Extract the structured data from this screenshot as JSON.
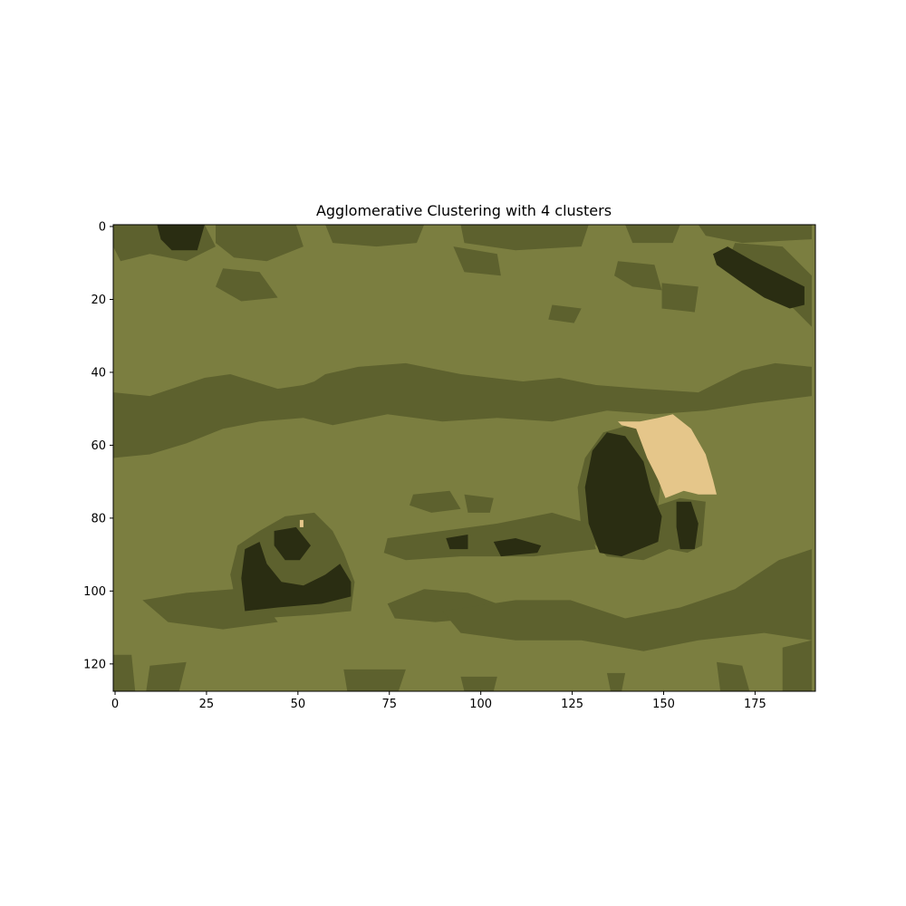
{
  "chart_data": {
    "type": "heatmap",
    "title": "Agglomerative Clustering with 4 clusters",
    "xlabel": "",
    "ylabel": "",
    "xlim": [
      -0.5,
      191.5
    ],
    "ylim": [
      127.5,
      -0.5
    ],
    "grid": false,
    "x_ticks": [
      "0",
      "25",
      "50",
      "75",
      "100",
      "125",
      "150",
      "175"
    ],
    "y_ticks": [
      "0",
      "20",
      "40",
      "60",
      "80",
      "100",
      "120"
    ],
    "image_width": 192,
    "image_height": 128,
    "cluster_colors": [
      "#7b7e40",
      "#5d612e",
      "#2a2d12",
      "#e5c68a"
    ],
    "base_cluster": 0,
    "regions": [
      {
        "cluster": 1,
        "points": [
          [
            0,
            0
          ],
          [
            25,
            0
          ],
          [
            28,
            6
          ],
          [
            20,
            10
          ],
          [
            10,
            8
          ],
          [
            2,
            10
          ],
          [
            0,
            6
          ]
        ]
      },
      {
        "cluster": 1,
        "points": [
          [
            28,
            0
          ],
          [
            50,
            0
          ],
          [
            52,
            6
          ],
          [
            42,
            10
          ],
          [
            33,
            9
          ],
          [
            28,
            5
          ]
        ]
      },
      {
        "cluster": 1,
        "points": [
          [
            58,
            0
          ],
          [
            85,
            0
          ],
          [
            83,
            5
          ],
          [
            72,
            6
          ],
          [
            60,
            5
          ]
        ]
      },
      {
        "cluster": 1,
        "points": [
          [
            95,
            0
          ],
          [
            130,
            0
          ],
          [
            128,
            6
          ],
          [
            110,
            7
          ],
          [
            96,
            5
          ]
        ]
      },
      {
        "cluster": 1,
        "points": [
          [
            140,
            0
          ],
          [
            155,
            0
          ],
          [
            153,
            5
          ],
          [
            142,
            5
          ]
        ]
      },
      {
        "cluster": 1,
        "points": [
          [
            160,
            0
          ],
          [
            191,
            0
          ],
          [
            191,
            4
          ],
          [
            172,
            5
          ],
          [
            162,
            3
          ]
        ]
      },
      {
        "cluster": 1,
        "points": [
          [
            170,
            5
          ],
          [
            183,
            6
          ],
          [
            191,
            14
          ],
          [
            191,
            28
          ],
          [
            186,
            23
          ],
          [
            175,
            16
          ],
          [
            168,
            10
          ]
        ]
      },
      {
        "cluster": 1,
        "points": [
          [
            138,
            10
          ],
          [
            148,
            11
          ],
          [
            150,
            18
          ],
          [
            142,
            17
          ],
          [
            137,
            14
          ]
        ]
      },
      {
        "cluster": 1,
        "points": [
          [
            150,
            16
          ],
          [
            160,
            17
          ],
          [
            159,
            24
          ],
          [
            150,
            23
          ]
        ]
      },
      {
        "cluster": 1,
        "points": [
          [
            93,
            6
          ],
          [
            105,
            8
          ],
          [
            106,
            14
          ],
          [
            96,
            13
          ]
        ]
      },
      {
        "cluster": 1,
        "points": [
          [
            30,
            12
          ],
          [
            40,
            13
          ],
          [
            45,
            20
          ],
          [
            35,
            21
          ],
          [
            28,
            17
          ]
        ]
      },
      {
        "cluster": 1,
        "points": [
          [
            120,
            22
          ],
          [
            128,
            23
          ],
          [
            126,
            27
          ],
          [
            119,
            26
          ]
        ]
      },
      {
        "cluster": 1,
        "points": [
          [
            0,
            46
          ],
          [
            10,
            47
          ],
          [
            25,
            42
          ],
          [
            32,
            41
          ],
          [
            45,
            45
          ],
          [
            52,
            44
          ],
          [
            55,
            43
          ],
          [
            58,
            41
          ],
          [
            67,
            39
          ],
          [
            80,
            38
          ],
          [
            95,
            41
          ],
          [
            112,
            43
          ],
          [
            122,
            42
          ],
          [
            132,
            44
          ],
          [
            145,
            45
          ],
          [
            160,
            46
          ],
          [
            172,
            40
          ],
          [
            181,
            38
          ],
          [
            191,
            39
          ],
          [
            191,
            47
          ],
          [
            175,
            49
          ],
          [
            162,
            51
          ],
          [
            148,
            52
          ],
          [
            135,
            51
          ],
          [
            120,
            54
          ],
          [
            105,
            53
          ],
          [
            90,
            54
          ],
          [
            75,
            52
          ],
          [
            60,
            55
          ],
          [
            52,
            53
          ],
          [
            40,
            54
          ],
          [
            30,
            56
          ],
          [
            20,
            60
          ],
          [
            10,
            63
          ],
          [
            0,
            64
          ]
        ]
      },
      {
        "cluster": 1,
        "points": [
          [
            129,
            64
          ],
          [
            134,
            57
          ],
          [
            141,
            55
          ],
          [
            146,
            57
          ],
          [
            150,
            68
          ],
          [
            149,
            77
          ],
          [
            155,
            75
          ],
          [
            162,
            76
          ],
          [
            161,
            88
          ],
          [
            157,
            90
          ],
          [
            152,
            89
          ],
          [
            145,
            92
          ],
          [
            135,
            91
          ],
          [
            128,
            84
          ],
          [
            127,
            72
          ]
        ]
      },
      {
        "cluster": 1,
        "points": [
          [
            75,
            86
          ],
          [
            90,
            84
          ],
          [
            105,
            82
          ],
          [
            120,
            79
          ],
          [
            130,
            82
          ],
          [
            132,
            89
          ],
          [
            115,
            91
          ],
          [
            95,
            91
          ],
          [
            80,
            92
          ],
          [
            74,
            90
          ]
        ]
      },
      {
        "cluster": 1,
        "points": [
          [
            82,
            74
          ],
          [
            92,
            73
          ],
          [
            95,
            78
          ],
          [
            87,
            79
          ],
          [
            81,
            77
          ]
        ]
      },
      {
        "cluster": 1,
        "points": [
          [
            96,
            74
          ],
          [
            104,
            75
          ],
          [
            103,
            79
          ],
          [
            97,
            79
          ]
        ]
      },
      {
        "cluster": 1,
        "points": [
          [
            34,
            88
          ],
          [
            40,
            84
          ],
          [
            47,
            80
          ],
          [
            55,
            79
          ],
          [
            60,
            84
          ],
          [
            63,
            90
          ],
          [
            66,
            98
          ],
          [
            65,
            106
          ],
          [
            55,
            107
          ],
          [
            40,
            108
          ],
          [
            34,
            106
          ],
          [
            32,
            96
          ]
        ]
      },
      {
        "cluster": 1,
        "points": [
          [
            8,
            103
          ],
          [
            20,
            101
          ],
          [
            33,
            100
          ],
          [
            40,
            102
          ],
          [
            45,
            109
          ],
          [
            30,
            111
          ],
          [
            15,
            109
          ]
        ]
      },
      {
        "cluster": 1,
        "points": [
          [
            75,
            104
          ],
          [
            85,
            100
          ],
          [
            97,
            101
          ],
          [
            105,
            104
          ],
          [
            100,
            108
          ],
          [
            88,
            109
          ],
          [
            77,
            108
          ]
        ]
      },
      {
        "cluster": 1,
        "points": [
          [
            90,
            106
          ],
          [
            110,
            103
          ],
          [
            125,
            103
          ],
          [
            140,
            108
          ],
          [
            155,
            105
          ],
          [
            170,
            100
          ],
          [
            182,
            92
          ],
          [
            191,
            89
          ],
          [
            191,
            114
          ],
          [
            178,
            112
          ],
          [
            160,
            114
          ],
          [
            145,
            117
          ],
          [
            128,
            114
          ],
          [
            110,
            114
          ],
          [
            95,
            112
          ]
        ]
      },
      {
        "cluster": 1,
        "points": [
          [
            0,
            118
          ],
          [
            5,
            118
          ],
          [
            6,
            128
          ],
          [
            0,
            128
          ]
        ]
      },
      {
        "cluster": 1,
        "points": [
          [
            10,
            121
          ],
          [
            20,
            120
          ],
          [
            18,
            128
          ],
          [
            9,
            128
          ]
        ]
      },
      {
        "cluster": 1,
        "points": [
          [
            63,
            122
          ],
          [
            80,
            122
          ],
          [
            78,
            128
          ],
          [
            64,
            128
          ]
        ]
      },
      {
        "cluster": 1,
        "points": [
          [
            95,
            124
          ],
          [
            105,
            124
          ],
          [
            104,
            128
          ],
          [
            96,
            128
          ]
        ]
      },
      {
        "cluster": 1,
        "points": [
          [
            135,
            123
          ],
          [
            140,
            123
          ],
          [
            139,
            128
          ],
          [
            136,
            128
          ]
        ]
      },
      {
        "cluster": 1,
        "points": [
          [
            165,
            120
          ],
          [
            172,
            121
          ],
          [
            174,
            128
          ],
          [
            166,
            128
          ]
        ]
      },
      {
        "cluster": 1,
        "points": [
          [
            183,
            116
          ],
          [
            191,
            114
          ],
          [
            191,
            128
          ],
          [
            183,
            128
          ]
        ]
      },
      {
        "cluster": 2,
        "points": [
          [
            12,
            0
          ],
          [
            25,
            0
          ],
          [
            23,
            7
          ],
          [
            16,
            7
          ],
          [
            13,
            4
          ]
        ]
      },
      {
        "cluster": 2,
        "points": [
          [
            164,
            8
          ],
          [
            168,
            6
          ],
          [
            175,
            10
          ],
          [
            183,
            14
          ],
          [
            189,
            17
          ],
          [
            189,
            22
          ],
          [
            185,
            23
          ],
          [
            178,
            20
          ],
          [
            172,
            16
          ],
          [
            165,
            11
          ]
        ]
      },
      {
        "cluster": 2,
        "points": [
          [
            131,
            62
          ],
          [
            135,
            57
          ],
          [
            140,
            58
          ],
          [
            145,
            65
          ],
          [
            147,
            73
          ],
          [
            150,
            80
          ],
          [
            149,
            87
          ],
          [
            144,
            89
          ],
          [
            139,
            91
          ],
          [
            133,
            90
          ],
          [
            130,
            82
          ],
          [
            129,
            72
          ]
        ]
      },
      {
        "cluster": 2,
        "points": [
          [
            154,
            76
          ],
          [
            158,
            76
          ],
          [
            160,
            82
          ],
          [
            159,
            89
          ],
          [
            155,
            89
          ],
          [
            154,
            83
          ]
        ]
      },
      {
        "cluster": 2,
        "points": [
          [
            36,
            89
          ],
          [
            40,
            87
          ],
          [
            42,
            93
          ],
          [
            46,
            98
          ],
          [
            52,
            99
          ],
          [
            58,
            96
          ],
          [
            62,
            93
          ],
          [
            65,
            98
          ],
          [
            65,
            102
          ],
          [
            57,
            104
          ],
          [
            45,
            105
          ],
          [
            36,
            106
          ],
          [
            35,
            97
          ]
        ]
      },
      {
        "cluster": 2,
        "points": [
          [
            44,
            84
          ],
          [
            50,
            83
          ],
          [
            54,
            88
          ],
          [
            51,
            92
          ],
          [
            47,
            92
          ],
          [
            44,
            88
          ]
        ]
      },
      {
        "cluster": 2,
        "points": [
          [
            91,
            86
          ],
          [
            97,
            85
          ],
          [
            97,
            89
          ],
          [
            92,
            89
          ]
        ]
      },
      {
        "cluster": 2,
        "points": [
          [
            104,
            87
          ],
          [
            110,
            86
          ],
          [
            117,
            88
          ],
          [
            116,
            90
          ],
          [
            106,
            91
          ]
        ]
      },
      {
        "cluster": 3,
        "points": [
          [
            138,
            54
          ],
          [
            144,
            54
          ],
          [
            149,
            53
          ],
          [
            153,
            52
          ],
          [
            158,
            56
          ],
          [
            162,
            63
          ],
          [
            164,
            70
          ],
          [
            165,
            74
          ],
          [
            160,
            74
          ],
          [
            156,
            73
          ],
          [
            151,
            75
          ],
          [
            149,
            70
          ],
          [
            146,
            64
          ],
          [
            143,
            56
          ],
          [
            139,
            55
          ]
        ]
      },
      {
        "cluster": 3,
        "points": [
          [
            51,
            81
          ],
          [
            52,
            81
          ],
          [
            52,
            83
          ],
          [
            51,
            83
          ]
        ]
      }
    ]
  }
}
